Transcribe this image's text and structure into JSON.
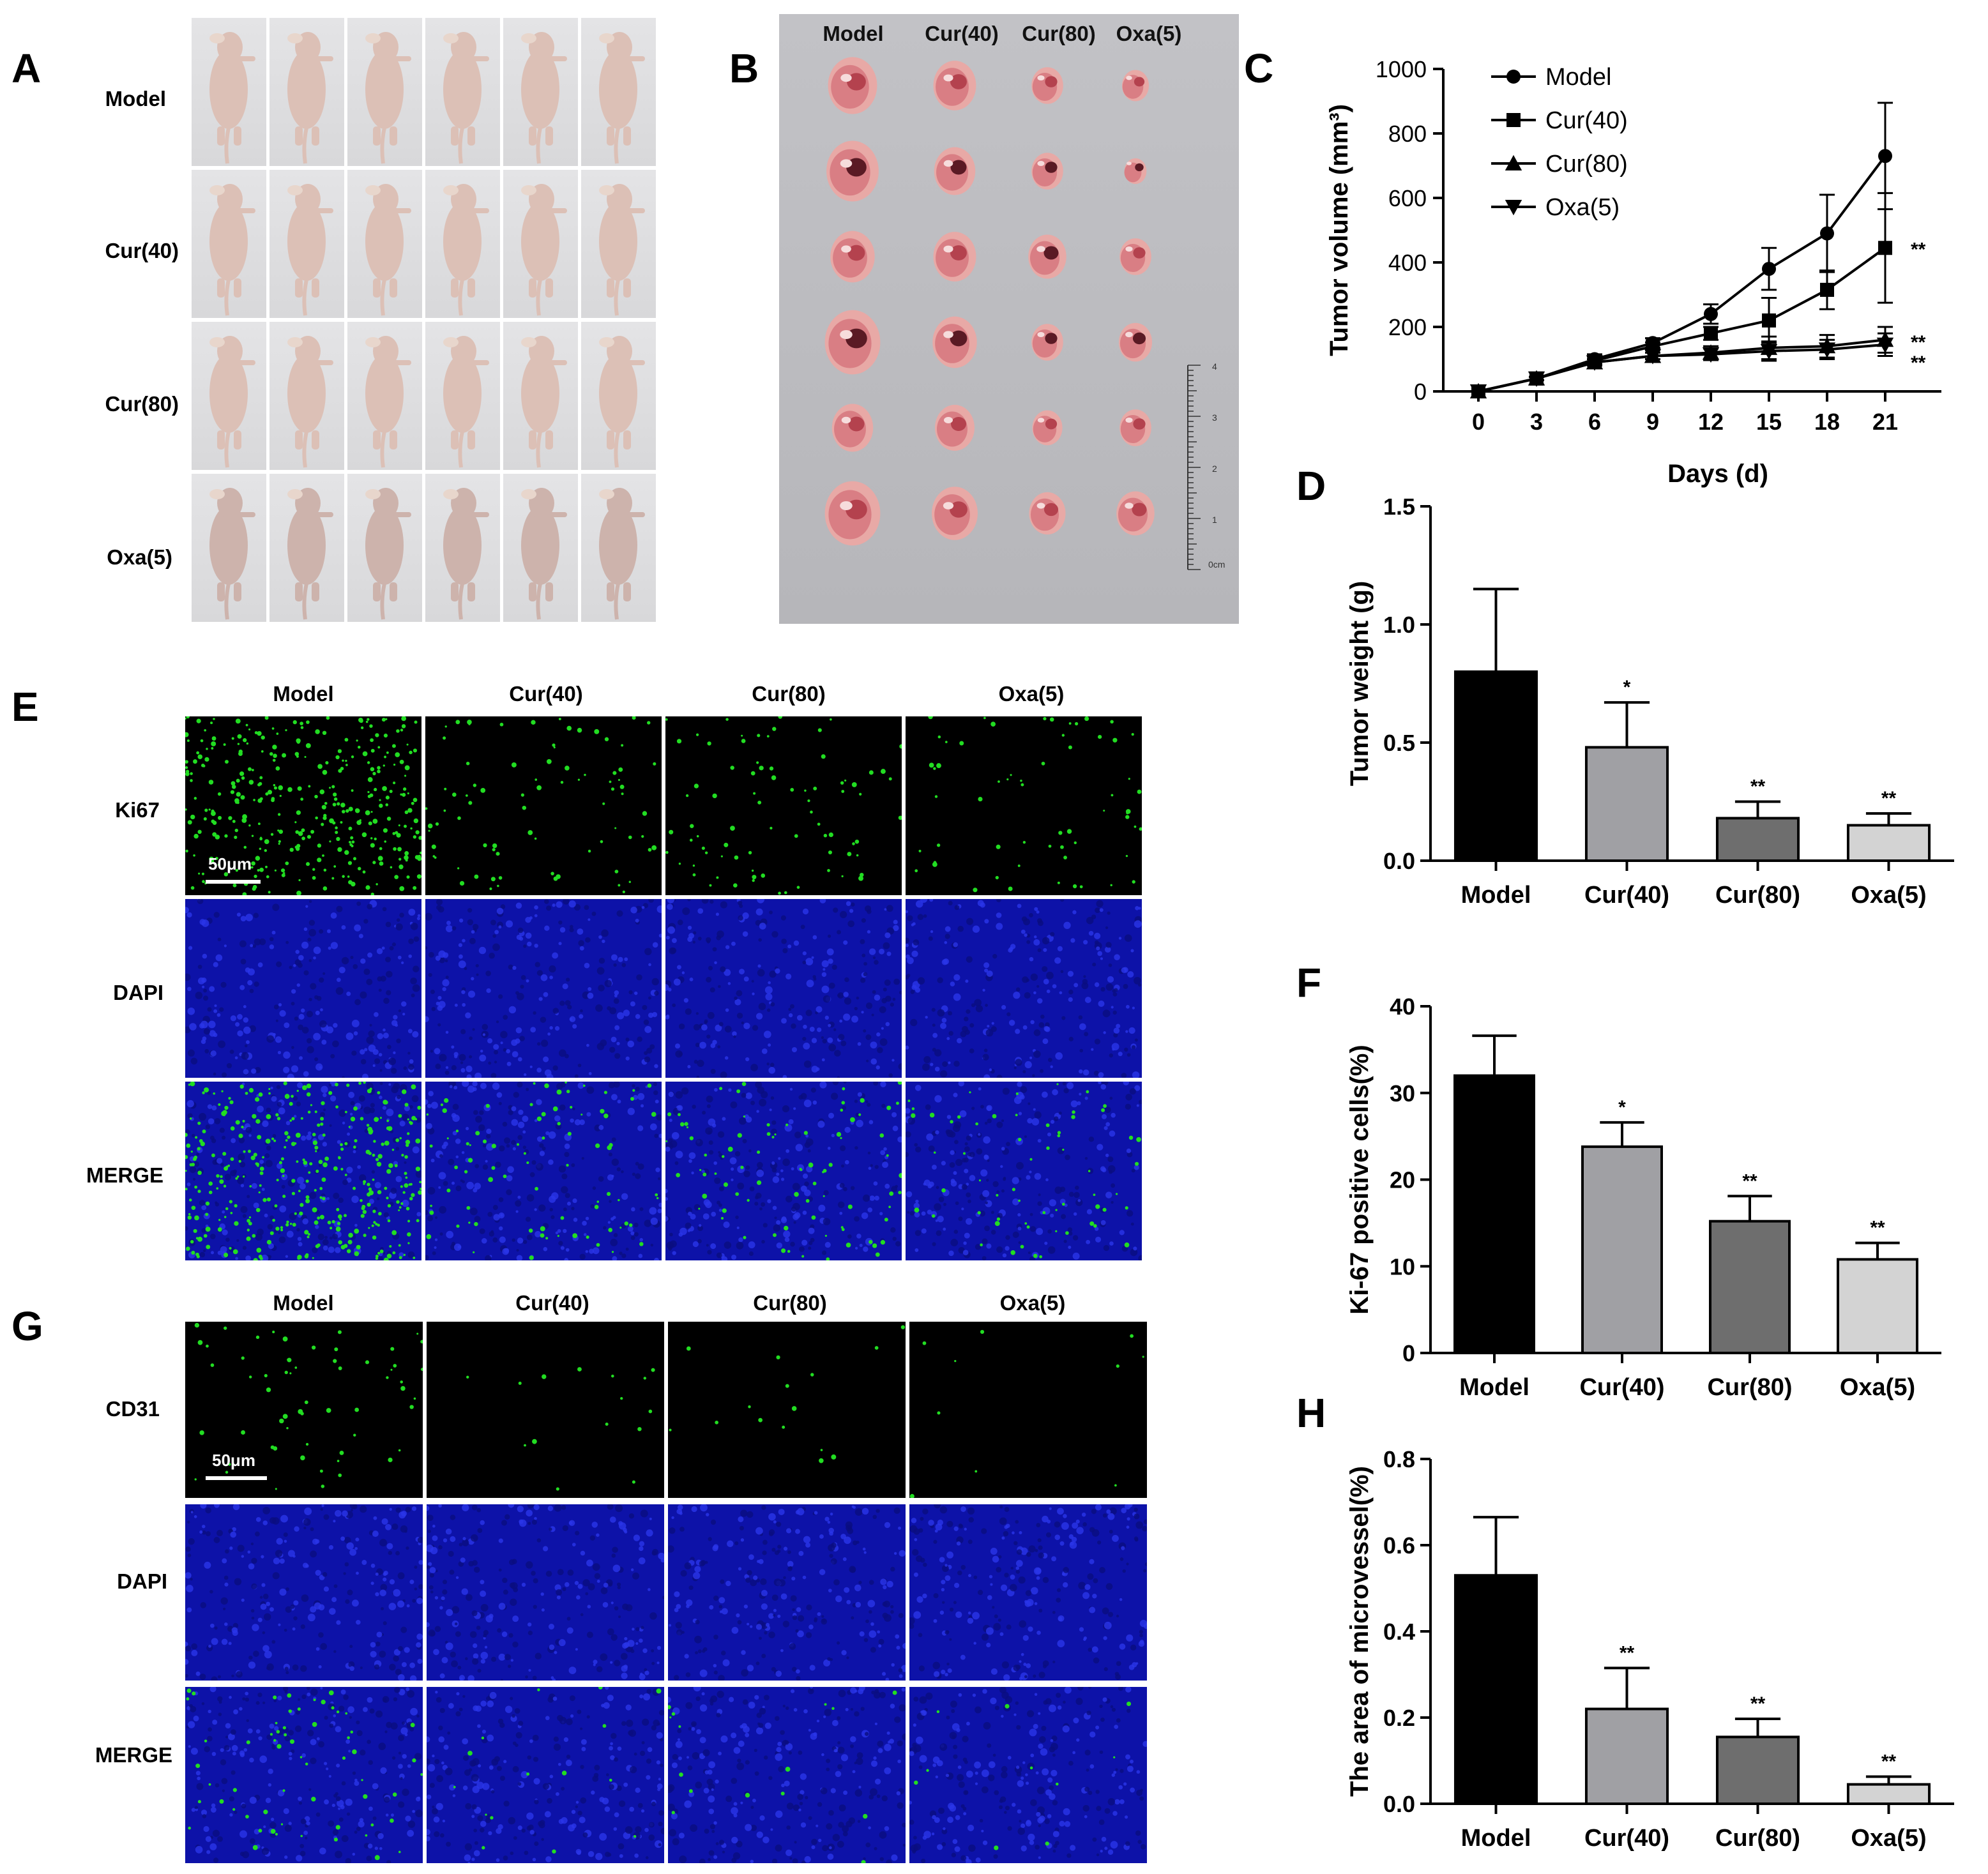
{
  "panel_labels": [
    "A",
    "B",
    "C",
    "D",
    "E",
    "F",
    "G",
    "H"
  ],
  "groups": [
    "Model",
    "Cur(40)",
    "Cur(80)",
    "Oxa(5)"
  ],
  "panel_A": {
    "row_labels": [
      "Model",
      "Cur(40)",
      "Cur(80)",
      "Oxa(5)"
    ],
    "mice_per_row": 6
  },
  "panel_B": {
    "col_labels": [
      "Model",
      "Cur(40)",
      "Cur(80)",
      "Oxa(5)"
    ],
    "ruler_labels": [
      "4",
      "3",
      "2",
      "1",
      "0cm"
    ]
  },
  "panel_E": {
    "col_labels": [
      "Model",
      "Cur(40)",
      "Cur(80)",
      "Oxa(5)"
    ],
    "row_labels": [
      "Ki67",
      "DAPI",
      "MERGE"
    ],
    "scale_bar": "50μm"
  },
  "panel_G": {
    "col_labels": [
      "Model",
      "Cur(40)",
      "Cur(80)",
      "Oxa(5)"
    ],
    "row_labels": [
      "CD31",
      "DAPI",
      "MERGE"
    ],
    "scale_bar": "50μm"
  },
  "colors": {
    "model": "#000000",
    "cur40": "#a0a0a4",
    "cur80": "#6e6e6e",
    "oxa5": "#d3d3d3",
    "dapi": "#1a1fd0",
    "green": "#22dd22"
  },
  "chart_data": [
    {
      "id": "C",
      "type": "line",
      "title": "",
      "xlabel": "Days (d)",
      "ylabel": "Tumor volume (mm³)",
      "x": [
        0,
        3,
        6,
        9,
        12,
        15,
        18,
        21
      ],
      "x_ticks": [
        0,
        3,
        6,
        9,
        12,
        15,
        18,
        21
      ],
      "y_ticks": [
        0,
        200,
        400,
        600,
        800,
        1000
      ],
      "ylim": [
        0,
        1000
      ],
      "legend_position": "top-left",
      "series": [
        {
          "name": "Model",
          "marker": "circle",
          "values": [
            0,
            40,
            100,
            150,
            240,
            380,
            490,
            730
          ],
          "errors": [
            0,
            5,
            15,
            15,
            30,
            65,
            120,
            165
          ]
        },
        {
          "name": "Cur(40)",
          "marker": "square",
          "values": [
            0,
            40,
            95,
            140,
            180,
            220,
            315,
            445
          ],
          "errors": [
            0,
            5,
            12,
            12,
            20,
            70,
            60,
            170
          ]
        },
        {
          "name": "Cur(80)",
          "marker": "triangle-up",
          "values": [
            0,
            40,
            90,
            110,
            120,
            135,
            140,
            160
          ],
          "errors": [
            0,
            5,
            10,
            10,
            20,
            35,
            35,
            40
          ]
        },
        {
          "name": "Oxa(5)",
          "marker": "triangle-down",
          "values": [
            0,
            40,
            90,
            110,
            115,
            125,
            130,
            145
          ],
          "errors": [
            0,
            5,
            10,
            10,
            18,
            30,
            30,
            35
          ]
        }
      ],
      "annotations": [
        "**",
        "**",
        "**"
      ]
    },
    {
      "id": "D",
      "type": "bar",
      "title": "",
      "xlabel": "",
      "ylabel": "Tumor weight (g)",
      "categories": [
        "Model",
        "Cur(40)",
        "Cur(80)",
        "Oxa(5)"
      ],
      "values": [
        0.8,
        0.48,
        0.18,
        0.15
      ],
      "errors": [
        0.35,
        0.19,
        0.07,
        0.05
      ],
      "significance": [
        "",
        "*",
        "**",
        "**"
      ],
      "y_ticks": [
        "0.0",
        "0.5",
        "1.0",
        "1.5"
      ],
      "ylim": [
        0,
        1.5
      ]
    },
    {
      "id": "F",
      "type": "bar",
      "title": "",
      "xlabel": "",
      "ylabel": "Ki-67 positive cells(%)",
      "categories": [
        "Model",
        "Cur(40)",
        "Cur(80)",
        "Oxa(5)"
      ],
      "values": [
        32,
        23.8,
        15.2,
        10.8
      ],
      "errors": [
        4.6,
        2.8,
        2.9,
        1.9
      ],
      "significance": [
        "",
        "*",
        "**",
        "**"
      ],
      "y_ticks": [
        "0",
        "10",
        "20",
        "30",
        "40"
      ],
      "ylim": [
        0,
        40
      ]
    },
    {
      "id": "H",
      "type": "bar",
      "title": "",
      "xlabel": "",
      "ylabel": "The area of microvessel(%)",
      "categories": [
        "Model",
        "Cur(40)",
        "Cur(80)",
        "Oxa(5)"
      ],
      "values": [
        0.53,
        0.22,
        0.155,
        0.045
      ],
      "errors": [
        0.135,
        0.095,
        0.042,
        0.018
      ],
      "significance": [
        "",
        "**",
        "**",
        "**"
      ],
      "y_ticks": [
        "0.0",
        "0.2",
        "0.4",
        "0.6",
        "0.8"
      ],
      "ylim": [
        0,
        0.8
      ]
    }
  ]
}
